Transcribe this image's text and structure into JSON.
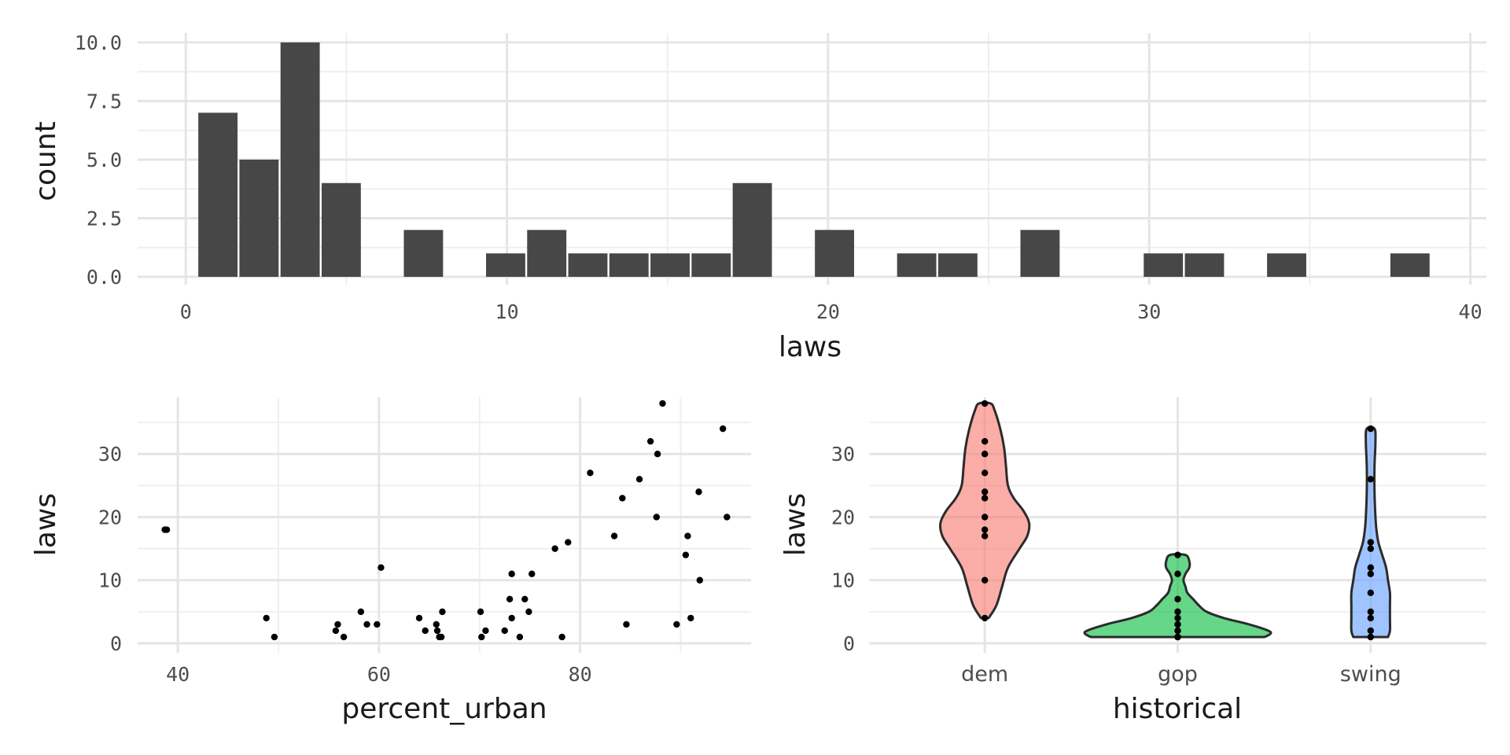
{
  "chart_data": [
    {
      "type": "bar",
      "subtype": "histogram",
      "xlabel": "laws",
      "ylabel": "count",
      "xlim": [
        -1.5,
        40.5
      ],
      "ylim": [
        0,
        10
      ],
      "x_ticks": [
        0,
        10,
        20,
        30,
        40
      ],
      "y_ticks": [
        0,
        2.5,
        5,
        7.5,
        10
      ],
      "x_tick_labels": [
        "0",
        "10",
        "20",
        "30",
        "40"
      ],
      "y_tick_labels": [
        "0.0",
        "2.5",
        "5.0",
        "7.5",
        "10.0"
      ],
      "bin_width": 1.28,
      "bins": [
        {
          "center": 1.0,
          "count": 7
        },
        {
          "center": 2.28,
          "count": 5
        },
        {
          "center": 3.56,
          "count": 10
        },
        {
          "center": 4.84,
          "count": 4
        },
        {
          "center": 7.4,
          "count": 2
        },
        {
          "center": 9.96,
          "count": 1
        },
        {
          "center": 11.24,
          "count": 2
        },
        {
          "center": 12.52,
          "count": 1
        },
        {
          "center": 13.8,
          "count": 1
        },
        {
          "center": 15.08,
          "count": 1
        },
        {
          "center": 16.36,
          "count": 1
        },
        {
          "center": 17.64,
          "count": 4
        },
        {
          "center": 20.2,
          "count": 2
        },
        {
          "center": 22.76,
          "count": 1
        },
        {
          "center": 24.04,
          "count": 1
        },
        {
          "center": 26.6,
          "count": 2
        },
        {
          "center": 30.44,
          "count": 1
        },
        {
          "center": 31.72,
          "count": 1
        },
        {
          "center": 34.28,
          "count": 1
        },
        {
          "center": 38.12,
          "count": 1
        }
      ],
      "bar_color": "#474747",
      "grid": true
    },
    {
      "type": "scatter",
      "xlabel": "percent_urban",
      "ylabel": "laws",
      "xlim": [
        36,
        97
      ],
      "ylim": [
        0,
        39
      ],
      "x_ticks": [
        40,
        60,
        80
      ],
      "y_ticks": [
        0,
        10,
        20,
        30
      ],
      "x_tick_labels": [
        "40",
        "60",
        "80"
      ],
      "y_tick_labels": [
        "0",
        "10",
        "20",
        "30"
      ],
      "point_color": "#000000",
      "grid": true,
      "points": [
        [
          38.7,
          18
        ],
        [
          38.9,
          18
        ],
        [
          48.8,
          4
        ],
        [
          49.6,
          1
        ],
        [
          55.7,
          2
        ],
        [
          55.9,
          3
        ],
        [
          56.5,
          1
        ],
        [
          58.2,
          5
        ],
        [
          58.8,
          3
        ],
        [
          59.8,
          3
        ],
        [
          60.2,
          12
        ],
        [
          64,
          4
        ],
        [
          64.6,
          2
        ],
        [
          65.7,
          3
        ],
        [
          65.8,
          2
        ],
        [
          66,
          1
        ],
        [
          66.2,
          1
        ],
        [
          66.3,
          5
        ],
        [
          70.1,
          5
        ],
        [
          70.2,
          1
        ],
        [
          70.6,
          2
        ],
        [
          72.5,
          2
        ],
        [
          73,
          7
        ],
        [
          73.2,
          4
        ],
        [
          73.2,
          11
        ],
        [
          74,
          1
        ],
        [
          74.5,
          7
        ],
        [
          74.9,
          5
        ],
        [
          75.2,
          11
        ],
        [
          77.5,
          15
        ],
        [
          78.2,
          1
        ],
        [
          78.8,
          16
        ],
        [
          81.0,
          27
        ],
        [
          83.4,
          17
        ],
        [
          84.2,
          23
        ],
        [
          84.6,
          3
        ],
        [
          85.9,
          26
        ],
        [
          87.0,
          32
        ],
        [
          87.6,
          20
        ],
        [
          87.7,
          30
        ],
        [
          88.2,
          38
        ],
        [
          89.6,
          3
        ],
        [
          90.5,
          14
        ],
        [
          90.7,
          17
        ],
        [
          91.0,
          4
        ],
        [
          91.9,
          10
        ],
        [
          91.8,
          24
        ],
        [
          94.2,
          34
        ],
        [
          94.6,
          20
        ]
      ]
    },
    {
      "type": "violin",
      "xlabel": "historical",
      "ylabel": "laws",
      "ylim": [
        0,
        39
      ],
      "y_ticks": [
        0,
        10,
        20,
        30
      ],
      "y_tick_labels": [
        "0",
        "10",
        "20",
        "30"
      ],
      "categories": [
        "dem",
        "gop",
        "swing"
      ],
      "colors": [
        "#f8766d",
        "#00ba38",
        "#619cff"
      ],
      "fill_opacity": 0.6,
      "grid": true,
      "violins": [
        {
          "name": "dem",
          "half_width_profile": [
            [
              4,
              0.02
            ],
            [
              6,
              0.06
            ],
            [
              9,
              0.09
            ],
            [
              12,
              0.12
            ],
            [
              15,
              0.18
            ],
            [
              17,
              0.22
            ],
            [
              19,
              0.23
            ],
            [
              21,
              0.2
            ],
            [
              23,
              0.15
            ],
            [
              25,
              0.12
            ],
            [
              28,
              0.11
            ],
            [
              31,
              0.1
            ],
            [
              34,
              0.08
            ],
            [
              37,
              0.05
            ],
            [
              38,
              0.03
            ]
          ],
          "points": [
            4,
            10,
            17,
            18,
            20,
            23,
            24,
            27,
            30,
            32,
            38
          ]
        },
        {
          "name": "gop",
          "half_width_profile": [
            [
              1,
              0.45
            ],
            [
              1.5,
              0.48
            ],
            [
              2,
              0.47
            ],
            [
              3,
              0.37
            ],
            [
              4,
              0.24
            ],
            [
              5,
              0.15
            ],
            [
              6,
              0.11
            ],
            [
              7,
              0.08
            ],
            [
              8,
              0.05
            ],
            [
              9,
              0.04
            ],
            [
              10,
              0.03
            ],
            [
              11,
              0.04
            ],
            [
              12,
              0.06
            ],
            [
              13,
              0.06
            ],
            [
              14,
              0.04
            ]
          ],
          "points": [
            1,
            1,
            1,
            2,
            2,
            3,
            3,
            4,
            5,
            7,
            11,
            14
          ]
        },
        {
          "name": "swing",
          "half_width_profile": [
            [
              1,
              0.09
            ],
            [
              2,
              0.1
            ],
            [
              4,
              0.1
            ],
            [
              6,
              0.1
            ],
            [
              8,
              0.1
            ],
            [
              10,
              0.09
            ],
            [
              12,
              0.08
            ],
            [
              14,
              0.06
            ],
            [
              16,
              0.04
            ],
            [
              18,
              0.03
            ],
            [
              20,
              0.025
            ],
            [
              24,
              0.02
            ],
            [
              28,
              0.02
            ],
            [
              32,
              0.025
            ],
            [
              34,
              0.02
            ]
          ],
          "points": [
            1,
            2,
            4,
            5,
            8,
            11,
            12,
            15,
            16,
            26,
            34
          ]
        }
      ]
    }
  ]
}
